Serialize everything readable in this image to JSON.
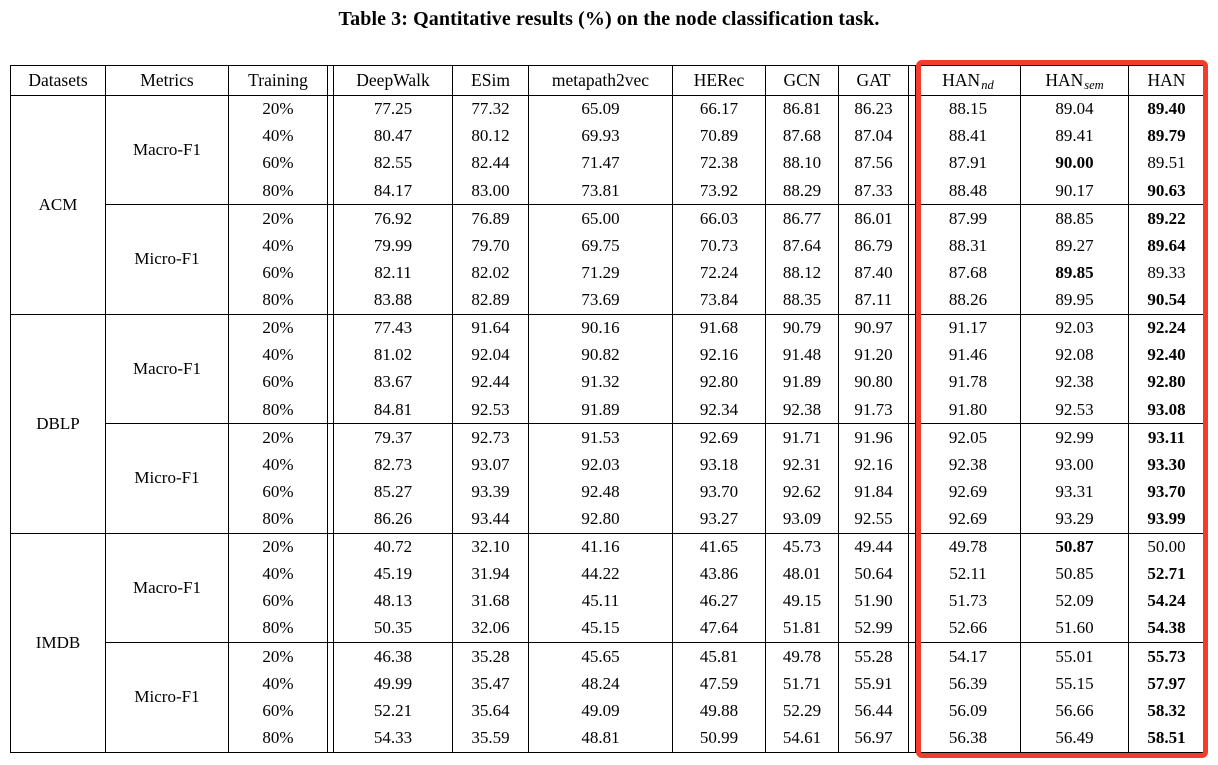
{
  "caption": "Table 3: Qantitative results (%) on the node classification task.",
  "highlight": {
    "color": "#f43b2c",
    "columns": [
      "HAN_nd",
      "HAN_sem",
      "HAN"
    ]
  },
  "table": {
    "header": {
      "datasets": "Datasets",
      "metrics": "Metrics",
      "training": "Training",
      "models": [
        "DeepWalk",
        "ESim",
        "metapath2vec",
        "HERec",
        "GCN",
        "GAT"
      ],
      "han_nd": {
        "base": "HAN",
        "sub": "nd"
      },
      "han_sem": {
        "base": "HAN",
        "sub": "sem"
      },
      "han": {
        "base": "HAN",
        "sub": ""
      }
    },
    "value_columns": [
      "DeepWalk",
      "ESim",
      "metapath2vec",
      "HERec",
      "GCN",
      "GAT",
      "HAN_nd",
      "HAN_sem",
      "HAN"
    ],
    "groups": [
      {
        "dataset": "ACM",
        "metrics": [
          {
            "metric": "Macro-F1",
            "rows": [
              {
                "training": "20%",
                "values": [
                  "77.25",
                  "77.32",
                  "65.09",
                  "66.17",
                  "86.81",
                  "86.23",
                  "88.15",
                  "89.04",
                  "89.40"
                ],
                "bold": [
                  8
                ]
              },
              {
                "training": "40%",
                "values": [
                  "80.47",
                  "80.12",
                  "69.93",
                  "70.89",
                  "87.68",
                  "87.04",
                  "88.41",
                  "89.41",
                  "89.79"
                ],
                "bold": [
                  8
                ]
              },
              {
                "training": "60%",
                "values": [
                  "82.55",
                  "82.44",
                  "71.47",
                  "72.38",
                  "88.10",
                  "87.56",
                  "87.91",
                  "90.00",
                  "89.51"
                ],
                "bold": [
                  7
                ]
              },
              {
                "training": "80%",
                "values": [
                  "84.17",
                  "83.00",
                  "73.81",
                  "73.92",
                  "88.29",
                  "87.33",
                  "88.48",
                  "90.17",
                  "90.63"
                ],
                "bold": [
                  8
                ]
              }
            ]
          },
          {
            "metric": "Micro-F1",
            "rows": [
              {
                "training": "20%",
                "values": [
                  "76.92",
                  "76.89",
                  "65.00",
                  "66.03",
                  "86.77",
                  "86.01",
                  "87.99",
                  "88.85",
                  "89.22"
                ],
                "bold": [
                  8
                ]
              },
              {
                "training": "40%",
                "values": [
                  "79.99",
                  "79.70",
                  "69.75",
                  "70.73",
                  "87.64",
                  "86.79",
                  "88.31",
                  "89.27",
                  "89.64"
                ],
                "bold": [
                  8
                ]
              },
              {
                "training": "60%",
                "values": [
                  "82.11",
                  "82.02",
                  "71.29",
                  "72.24",
                  "88.12",
                  "87.40",
                  "87.68",
                  "89.85",
                  "89.33"
                ],
                "bold": [
                  7
                ]
              },
              {
                "training": "80%",
                "values": [
                  "83.88",
                  "82.89",
                  "73.69",
                  "73.84",
                  "88.35",
                  "87.11",
                  "88.26",
                  "89.95",
                  "90.54"
                ],
                "bold": [
                  8
                ]
              }
            ]
          }
        ]
      },
      {
        "dataset": "DBLP",
        "metrics": [
          {
            "metric": "Macro-F1",
            "rows": [
              {
                "training": "20%",
                "values": [
                  "77.43",
                  "91.64",
                  "90.16",
                  "91.68",
                  "90.79",
                  "90.97",
                  "91.17",
                  "92.03",
                  "92.24"
                ],
                "bold": [
                  8
                ]
              },
              {
                "training": "40%",
                "values": [
                  "81.02",
                  "92.04",
                  "90.82",
                  "92.16",
                  "91.48",
                  "91.20",
                  "91.46",
                  "92.08",
                  "92.40"
                ],
                "bold": [
                  8
                ]
              },
              {
                "training": "60%",
                "values": [
                  "83.67",
                  "92.44",
                  "91.32",
                  "92.80",
                  "91.89",
                  "90.80",
                  "91.78",
                  "92.38",
                  "92.80"
                ],
                "bold": [
                  8
                ]
              },
              {
                "training": "80%",
                "values": [
                  "84.81",
                  "92.53",
                  "91.89",
                  "92.34",
                  "92.38",
                  "91.73",
                  "91.80",
                  "92.53",
                  "93.08"
                ],
                "bold": [
                  8
                ]
              }
            ]
          },
          {
            "metric": "Micro-F1",
            "rows": [
              {
                "training": "20%",
                "values": [
                  "79.37",
                  "92.73",
                  "91.53",
                  "92.69",
                  "91.71",
                  "91.96",
                  "92.05",
                  "92.99",
                  "93.11"
                ],
                "bold": [
                  8
                ]
              },
              {
                "training": "40%",
                "values": [
                  "82.73",
                  "93.07",
                  "92.03",
                  "93.18",
                  "92.31",
                  "92.16",
                  "92.38",
                  "93.00",
                  "93.30"
                ],
                "bold": [
                  8
                ]
              },
              {
                "training": "60%",
                "values": [
                  "85.27",
                  "93.39",
                  "92.48",
                  "93.70",
                  "92.62",
                  "91.84",
                  "92.69",
                  "93.31",
                  "93.70"
                ],
                "bold": [
                  8
                ]
              },
              {
                "training": "80%",
                "values": [
                  "86.26",
                  "93.44",
                  "92.80",
                  "93.27",
                  "93.09",
                  "92.55",
                  "92.69",
                  "93.29",
                  "93.99"
                ],
                "bold": [
                  8
                ]
              }
            ]
          }
        ]
      },
      {
        "dataset": "IMDB",
        "metrics": [
          {
            "metric": "Macro-F1",
            "rows": [
              {
                "training": "20%",
                "values": [
                  "40.72",
                  "32.10",
                  "41.16",
                  "41.65",
                  "45.73",
                  "49.44",
                  "49.78",
                  "50.87",
                  "50.00"
                ],
                "bold": [
                  7
                ]
              },
              {
                "training": "40%",
                "values": [
                  "45.19",
                  "31.94",
                  "44.22",
                  "43.86",
                  "48.01",
                  "50.64",
                  "52.11",
                  "50.85",
                  "52.71"
                ],
                "bold": [
                  8
                ]
              },
              {
                "training": "60%",
                "values": [
                  "48.13",
                  "31.68",
                  "45.11",
                  "46.27",
                  "49.15",
                  "51.90",
                  "51.73",
                  "52.09",
                  "54.24"
                ],
                "bold": [
                  8
                ]
              },
              {
                "training": "80%",
                "values": [
                  "50.35",
                  "32.06",
                  "45.15",
                  "47.64",
                  "51.81",
                  "52.99",
                  "52.66",
                  "51.60",
                  "54.38"
                ],
                "bold": [
                  8
                ]
              }
            ]
          },
          {
            "metric": "Micro-F1",
            "rows": [
              {
                "training": "20%",
                "values": [
                  "46.38",
                  "35.28",
                  "45.65",
                  "45.81",
                  "49.78",
                  "55.28",
                  "54.17",
                  "55.01",
                  "55.73"
                ],
                "bold": [
                  8
                ]
              },
              {
                "training": "40%",
                "values": [
                  "49.99",
                  "35.47",
                  "48.24",
                  "47.59",
                  "51.71",
                  "55.91",
                  "56.39",
                  "55.15",
                  "57.97"
                ],
                "bold": [
                  8
                ]
              },
              {
                "training": "60%",
                "values": [
                  "52.21",
                  "35.64",
                  "49.09",
                  "49.88",
                  "52.29",
                  "56.44",
                  "56.09",
                  "56.66",
                  "58.32"
                ],
                "bold": [
                  8
                ]
              },
              {
                "training": "80%",
                "values": [
                  "54.33",
                  "35.59",
                  "48.81",
                  "50.99",
                  "54.61",
                  "56.97",
                  "56.38",
                  "56.49",
                  "58.51"
                ],
                "bold": [
                  8
                ]
              }
            ]
          }
        ]
      }
    ]
  }
}
